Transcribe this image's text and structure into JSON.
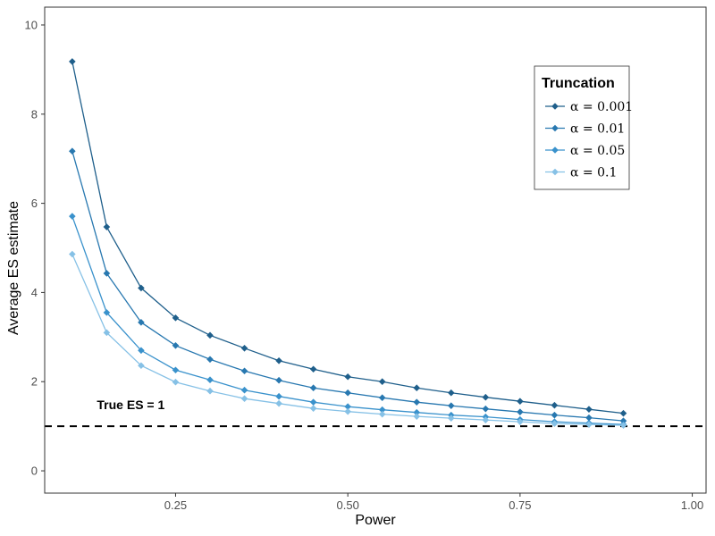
{
  "chart_data": {
    "type": "line",
    "xlabel": "Power",
    "ylabel": "Average ES estimate",
    "xlim": [
      0.06,
      1.02
    ],
    "ylim": [
      -0.5,
      10.4
    ],
    "xticks": [
      0.25,
      0.5,
      0.75,
      1.0
    ],
    "xtick_labels": [
      "0.25",
      "0.50",
      "0.75",
      "1.00"
    ],
    "yticks": [
      0,
      2,
      4,
      6,
      8,
      10
    ],
    "ytick_labels": [
      "0",
      "2",
      "4",
      "6",
      "8",
      "10"
    ],
    "grid": false,
    "legend": {
      "title": "Truncation",
      "placement": "top-right"
    },
    "x": [
      0.1,
      0.15,
      0.2,
      0.25,
      0.3,
      0.35,
      0.4,
      0.45,
      0.5,
      0.55,
      0.6,
      0.65,
      0.7,
      0.75,
      0.8,
      0.85,
      0.9
    ],
    "series": [
      {
        "name": "α = 0.001",
        "color": "#1f5f8b",
        "values": [
          9.18,
          5.47,
          4.1,
          3.43,
          3.04,
          2.75,
          2.47,
          2.28,
          2.11,
          2.0,
          1.86,
          1.75,
          1.65,
          1.56,
          1.47,
          1.38,
          1.29
        ]
      },
      {
        "name": "α = 0.01",
        "color": "#2878b0",
        "values": [
          7.17,
          4.43,
          3.33,
          2.81,
          2.5,
          2.24,
          2.03,
          1.86,
          1.75,
          1.64,
          1.54,
          1.46,
          1.39,
          1.32,
          1.25,
          1.19,
          1.12
        ]
      },
      {
        "name": "α = 0.05",
        "color": "#3a92cc",
        "values": [
          5.71,
          3.55,
          2.7,
          2.26,
          2.04,
          1.81,
          1.67,
          1.54,
          1.44,
          1.37,
          1.31,
          1.25,
          1.21,
          1.15,
          1.1,
          1.07,
          1.04
        ]
      },
      {
        "name": "α = 0.1",
        "color": "#86c1e6",
        "values": [
          4.86,
          3.1,
          2.36,
          1.99,
          1.79,
          1.62,
          1.51,
          1.4,
          1.33,
          1.27,
          1.22,
          1.18,
          1.14,
          1.1,
          1.06,
          1.04,
          1.02
        ]
      }
    ],
    "reference_line": {
      "y": 1,
      "style": "dashed",
      "color": "#000000"
    },
    "annotation": {
      "text": "True ES = 1",
      "x": 0.185,
      "y": 1.38
    }
  }
}
